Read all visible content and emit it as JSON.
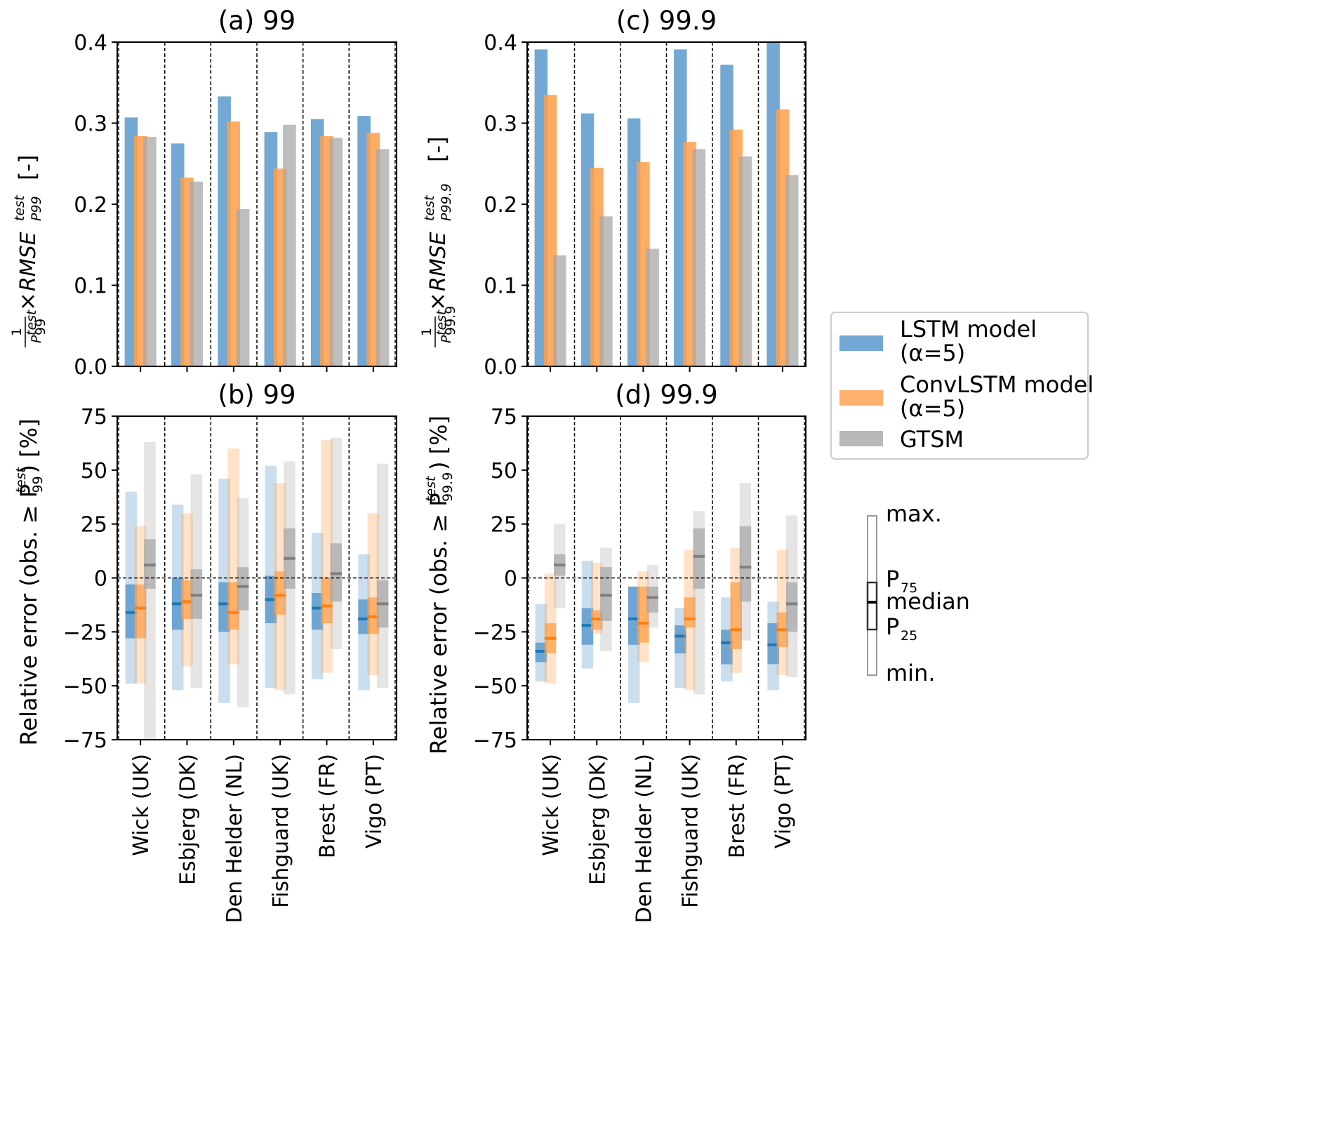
{
  "colors": {
    "lstm": "#4f92c8",
    "conv": "#ff9f4a",
    "gtsm": "#a8a8a8",
    "lstm_dark": "#1f77b4",
    "conv_dark": "#ff7f0e",
    "gtsm_dark": "#7f7f7f"
  },
  "categories": [
    "Wick (UK)",
    "Esbjerg (DK)",
    "Den Helder (NL)",
    "Fishguard (UK)",
    "Brest (FR)",
    "Vigo (PT)"
  ],
  "legend": {
    "items": [
      {
        "key": "lstm",
        "line1": "LSTM model",
        "line2": "(α=5)"
      },
      {
        "key": "conv",
        "line1": "ConvLSTM model",
        "line2": "(α=5)"
      },
      {
        "key": "gtsm",
        "line1": "GTSM",
        "line2": ""
      }
    ],
    "boxkey": {
      "max": "max.",
      "p75": "P",
      "p75_sub": "75",
      "median": "median",
      "p25": "P",
      "p25_sub": "25",
      "min": "min."
    }
  },
  "chart_data": [
    {
      "panel": "a",
      "type": "bar",
      "title": "(a) 99",
      "ylabel": "1/P99^test × RMSE_P99^test [-]",
      "ylim": [
        0,
        0.4
      ],
      "yticks": [
        "0.0",
        "0.1",
        "0.2",
        "0.3",
        "0.4"
      ],
      "series": [
        {
          "name": "LSTM model (α=5)",
          "values": [
            0.307,
            0.275,
            0.333,
            0.289,
            0.305,
            0.309
          ]
        },
        {
          "name": "ConvLSTM model (α=5)",
          "values": [
            0.284,
            0.233,
            0.302,
            0.244,
            0.284,
            0.288
          ]
        },
        {
          "name": "GTSM",
          "values": [
            0.283,
            0.228,
            0.194,
            0.298,
            0.282,
            0.268
          ]
        }
      ]
    },
    {
      "panel": "c",
      "type": "bar",
      "title": "(c) 99.9",
      "ylabel": "1/P99.9^test × RMSE_P99.9^test [-]",
      "ylim": [
        0,
        0.4
      ],
      "yticks": [
        "0.0",
        "0.1",
        "0.2",
        "0.3",
        "0.4"
      ],
      "series": [
        {
          "name": "LSTM model (α=5)",
          "values": [
            0.391,
            0.312,
            0.306,
            0.391,
            0.372,
            0.4
          ]
        },
        {
          "name": "ConvLSTM model (α=5)",
          "values": [
            0.335,
            0.245,
            0.252,
            0.277,
            0.292,
            0.317
          ]
        },
        {
          "name": "GTSM",
          "values": [
            0.137,
            0.185,
            0.145,
            0.268,
            0.259,
            0.236
          ]
        }
      ]
    },
    {
      "panel": "b",
      "type": "box",
      "title": "(b) 99",
      "ylabel": "Relative error (obs. ≥ P99^test) [%]",
      "ylim": [
        -75,
        75
      ],
      "yticks": [
        "−75",
        "−50",
        "−25",
        "0",
        "25",
        "50",
        "75"
      ],
      "series": [
        {
          "name": "LSTM model (α=5)",
          "stats": [
            {
              "min": -49,
              "p25": -28,
              "median": -16,
              "p75": -3,
              "max": 40
            },
            {
              "min": -52,
              "p25": -24,
              "median": -12,
              "p75": 0,
              "max": 34
            },
            {
              "min": -58,
              "p25": -25,
              "median": -12,
              "p75": -2,
              "max": 46
            },
            {
              "min": -51,
              "p25": -21,
              "median": -10,
              "p75": 1,
              "max": 52
            },
            {
              "min": -47,
              "p25": -24,
              "median": -14,
              "p75": -7,
              "max": 21
            },
            {
              "min": -52,
              "p25": -26,
              "median": -19,
              "p75": -10,
              "max": 11
            }
          ]
        },
        {
          "name": "ConvLSTM model (α=5)",
          "stats": [
            {
              "min": -49,
              "p25": -28,
              "median": -14,
              "p75": -3,
              "max": 24
            },
            {
              "min": -41,
              "p25": -19,
              "median": -11,
              "p75": -1,
              "max": 30
            },
            {
              "min": -40,
              "p25": -24,
              "median": -16,
              "p75": -2,
              "max": 60
            },
            {
              "min": -52,
              "p25": -17,
              "median": -8,
              "p75": 3,
              "max": 44
            },
            {
              "min": -44,
              "p25": -21,
              "median": -13,
              "p75": 0,
              "max": 64
            },
            {
              "min": -45,
              "p25": -26,
              "median": -18,
              "p75": -9,
              "max": 30
            }
          ]
        },
        {
          "name": "GTSM",
          "stats": [
            {
              "min": -75,
              "p25": -5,
              "median": 6,
              "p75": 18,
              "max": 63
            },
            {
              "min": -51,
              "p25": -19,
              "median": -8,
              "p75": 4,
              "max": 48
            },
            {
              "min": -60,
              "p25": -15,
              "median": -4,
              "p75": 5,
              "max": 37
            },
            {
              "min": -54,
              "p25": -5,
              "median": 9,
              "p75": 23,
              "max": 54
            },
            {
              "min": -33,
              "p25": -11,
              "median": 2,
              "p75": 16,
              "max": 65
            },
            {
              "min": -51,
              "p25": -23,
              "median": -12,
              "p75": -1,
              "max": 53
            }
          ]
        }
      ]
    },
    {
      "panel": "d",
      "type": "box",
      "title": "(d) 99.9",
      "ylabel": "Relative error (obs. ≥ P99.9^test) [%]",
      "ylim": [
        -75,
        75
      ],
      "yticks": [
        "−75",
        "−50",
        "−25",
        "0",
        "25",
        "50",
        "75"
      ],
      "series": [
        {
          "name": "LSTM model (α=5)",
          "stats": [
            {
              "min": -48,
              "p25": -39,
              "median": -34,
              "p75": -30,
              "max": -12
            },
            {
              "min": -42,
              "p25": -31,
              "median": -22,
              "p75": -14,
              "max": 8
            },
            {
              "min": -58,
              "p25": -31,
              "median": -19,
              "p75": -4,
              "max": -4
            },
            {
              "min": -51,
              "p25": -35,
              "median": -27,
              "p75": -22,
              "max": -14
            },
            {
              "min": -48,
              "p25": -40,
              "median": -30,
              "p75": -24,
              "max": -9
            },
            {
              "min": -52,
              "p25": -40,
              "median": -31,
              "p75": -21,
              "max": -11
            }
          ]
        },
        {
          "name": "ConvLSTM model (α=5)",
          "stats": [
            {
              "min": -49,
              "p25": -35,
              "median": -28,
              "p75": -21,
              "max": 2
            },
            {
              "min": -26,
              "p25": -24,
              "median": -19,
              "p75": -15,
              "max": 7
            },
            {
              "min": -39,
              "p25": -30,
              "median": -21,
              "p75": -4,
              "max": 3
            },
            {
              "min": -52,
              "p25": -23,
              "median": -19,
              "p75": -9,
              "max": 13
            },
            {
              "min": -44,
              "p25": -33,
              "median": -24,
              "p75": -2,
              "max": 14
            },
            {
              "min": -45,
              "p25": -32,
              "median": -24,
              "p75": -16,
              "max": 13
            }
          ]
        },
        {
          "name": "GTSM",
          "stats": [
            {
              "min": -14,
              "p25": 1,
              "median": 6,
              "p75": 11,
              "max": 25
            },
            {
              "min": -34,
              "p25": -20,
              "median": -8,
              "p75": 5,
              "max": 14
            },
            {
              "min": -23,
              "p25": -16,
              "median": -9,
              "p75": -4,
              "max": 6
            },
            {
              "min": -54,
              "p25": -5,
              "median": 10,
              "p75": 23,
              "max": 31
            },
            {
              "min": -29,
              "p25": -11,
              "median": 5,
              "p75": 24,
              "max": 44
            },
            {
              "min": -46,
              "p25": -25,
              "median": -12,
              "p75": -2,
              "max": 29
            }
          ]
        }
      ]
    }
  ]
}
